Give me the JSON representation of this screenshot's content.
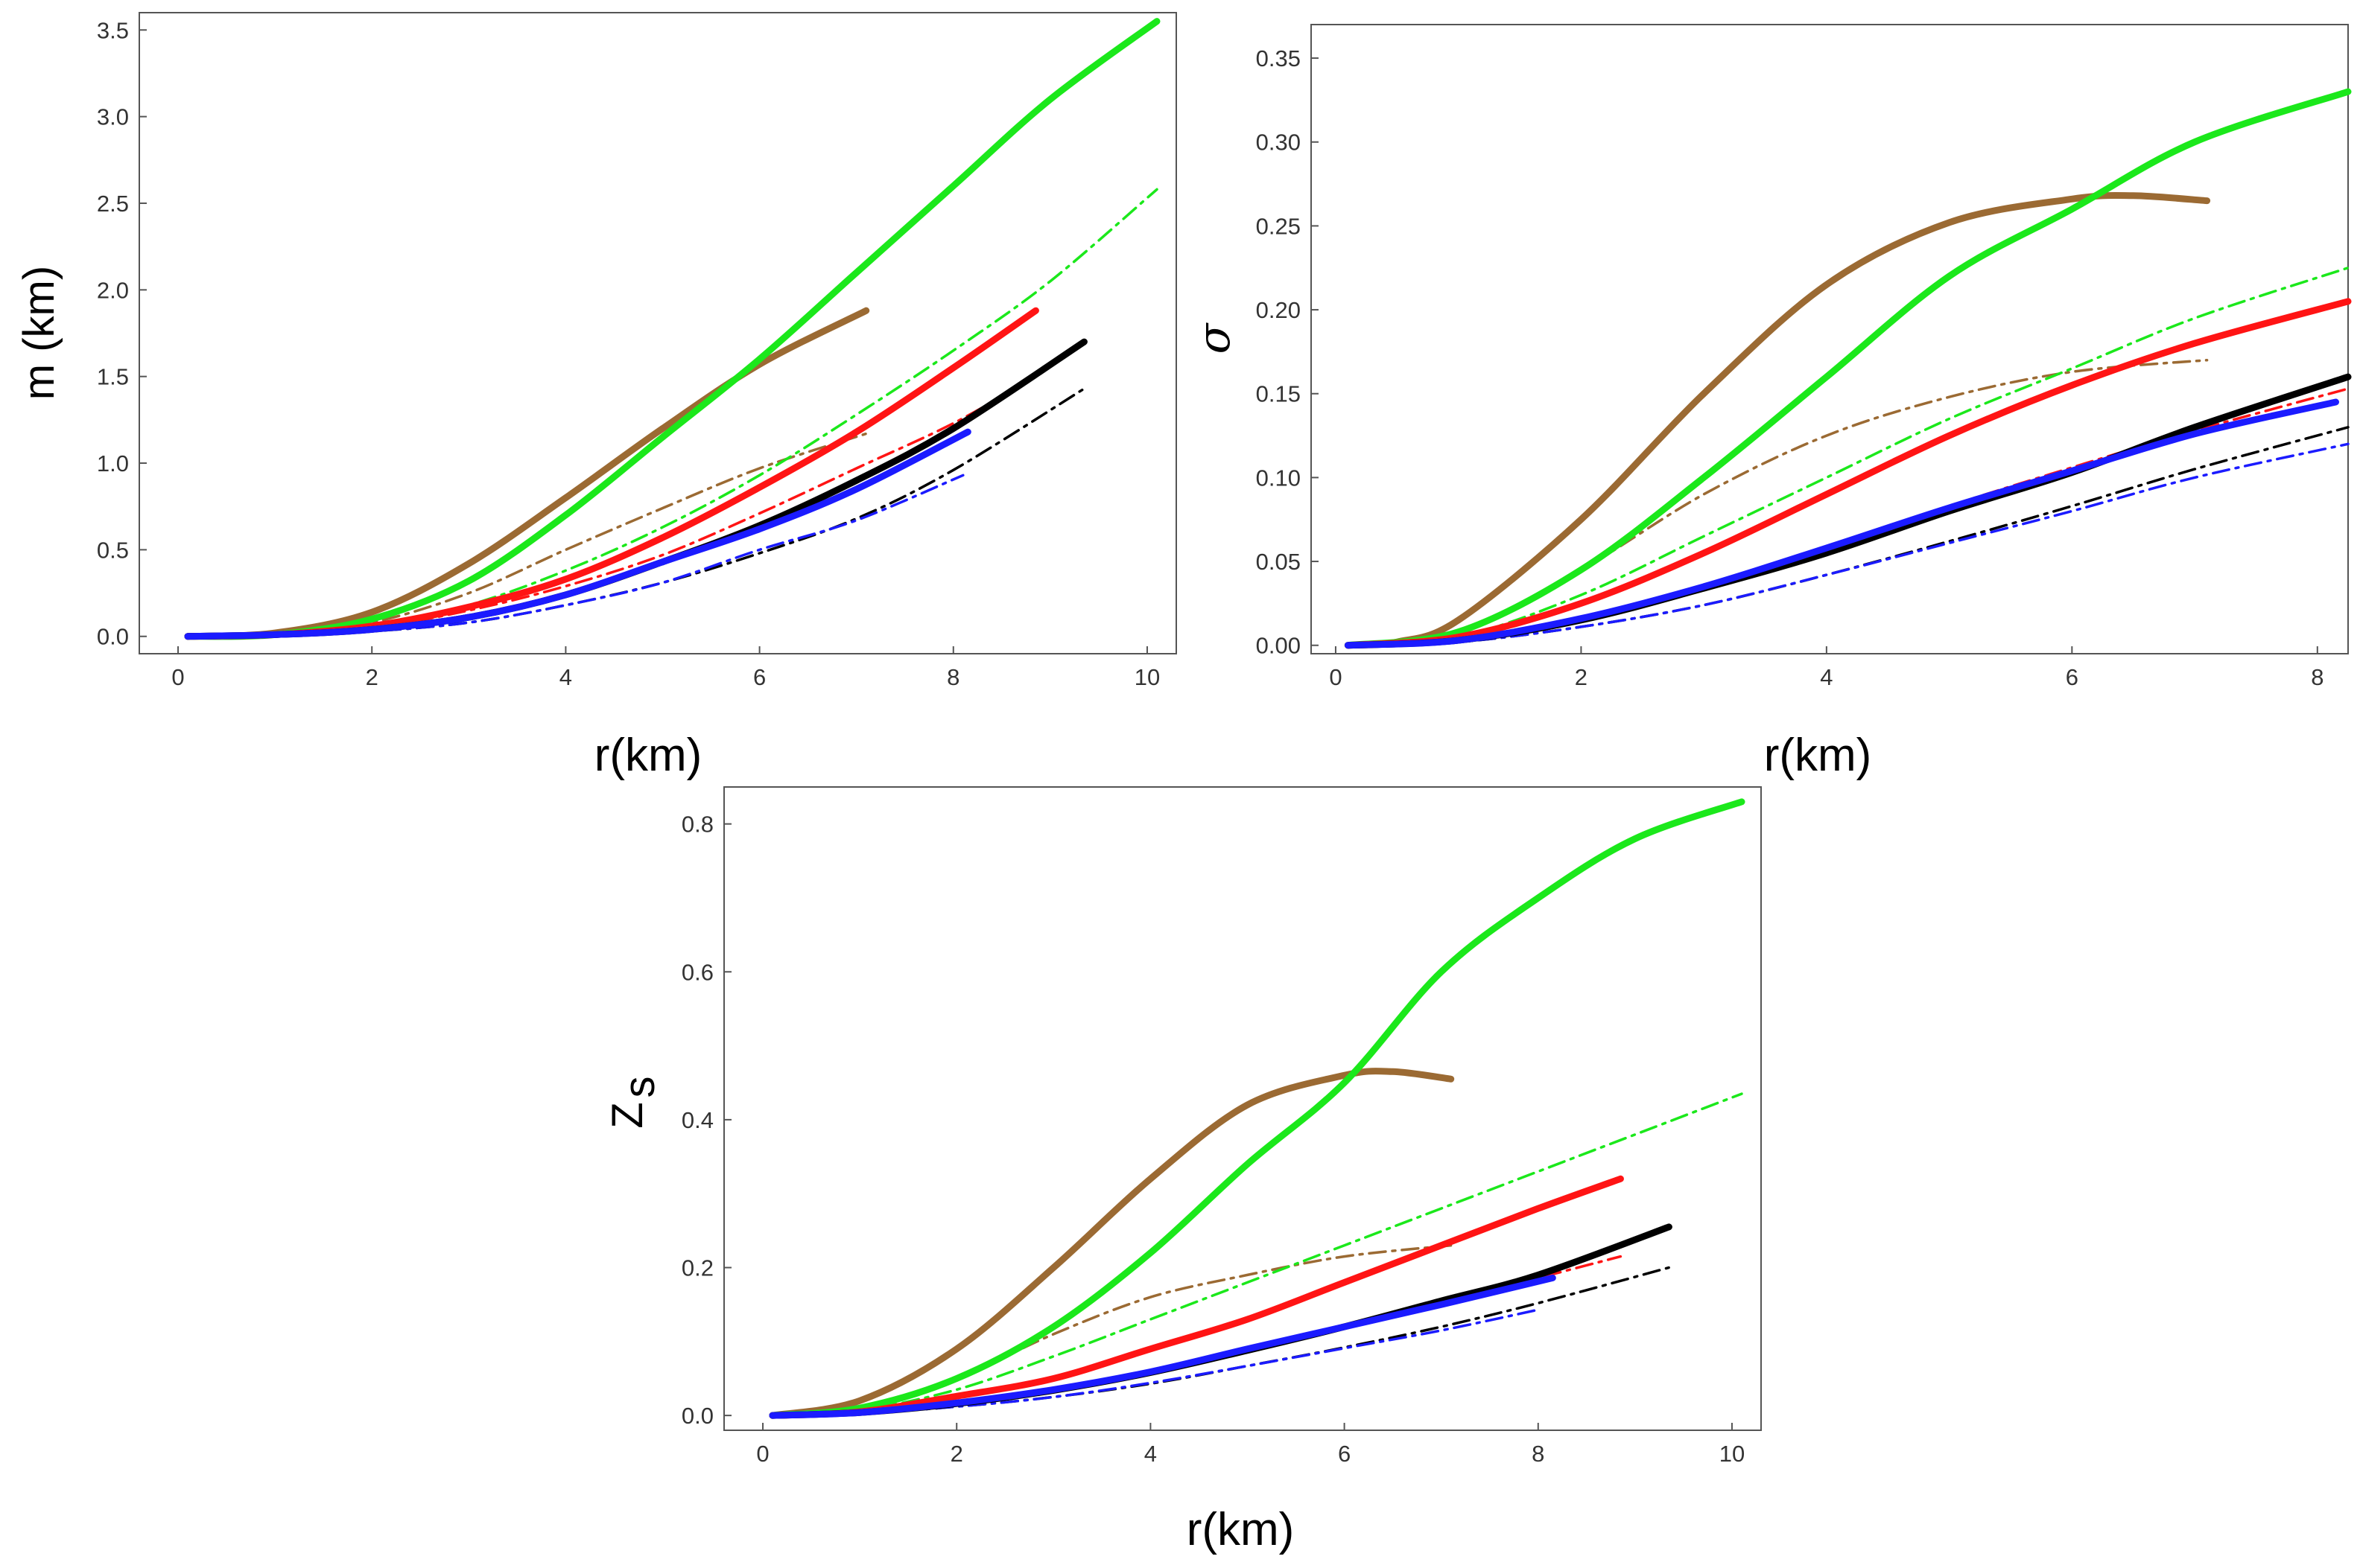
{
  "colors": {
    "brown": "#9b6a33",
    "green": "#1be81b",
    "red": "#ff1414",
    "black": "#000000",
    "blue": "#1b1bff",
    "axis": "#555555"
  },
  "chart_data": [
    {
      "id": "mass",
      "type": "line",
      "title": "",
      "xlabel": "r(km)",
      "ylabel": "m (km)",
      "xlim": [
        -0.4,
        10.3
      ],
      "ylim": [
        -0.1,
        3.6
      ],
      "xticks": [
        0,
        2,
        4,
        6,
        8,
        10
      ],
      "yticks": [
        0.0,
        0.5,
        1.0,
        1.5,
        2.0,
        2.5,
        3.0,
        3.5
      ],
      "ytick_labels": [
        "0.0",
        "0.5",
        "1.0",
        "1.5",
        "2.0",
        "2.5",
        "3.0",
        "3.5"
      ],
      "series": [
        {
          "name": "brown-solid",
          "color": "brown",
          "style": "solid",
          "x": [
            0.1,
            1,
            2,
            3,
            4,
            5,
            6,
            7.1
          ],
          "y": [
            0,
            0.02,
            0.14,
            0.42,
            0.8,
            1.2,
            1.57,
            1.88
          ]
        },
        {
          "name": "green-solid",
          "color": "green",
          "style": "solid",
          "x": [
            0.1,
            1,
            2,
            3,
            4,
            5,
            6,
            7,
            8,
            9,
            10.1
          ],
          "y": [
            0,
            0.01,
            0.1,
            0.32,
            0.7,
            1.15,
            1.6,
            2.1,
            2.6,
            3.1,
            3.55
          ]
        },
        {
          "name": "red-solid",
          "color": "red",
          "style": "solid",
          "x": [
            0.1,
            1,
            2,
            3,
            4,
            5,
            6,
            7,
            8,
            8.85
          ],
          "y": [
            0,
            0.01,
            0.06,
            0.17,
            0.33,
            0.57,
            0.86,
            1.18,
            1.55,
            1.88
          ]
        },
        {
          "name": "black-solid",
          "color": "black",
          "style": "solid",
          "x": [
            0.1,
            1,
            2,
            3,
            4,
            5,
            6,
            7,
            8,
            9.35
          ],
          "y": [
            0,
            0.01,
            0.04,
            0.11,
            0.24,
            0.43,
            0.64,
            0.9,
            1.2,
            1.7
          ]
        },
        {
          "name": "blue-solid",
          "color": "blue",
          "style": "solid",
          "x": [
            0.1,
            1,
            2,
            3,
            4,
            5,
            6,
            7,
            8.15
          ],
          "y": [
            0,
            0.01,
            0.04,
            0.11,
            0.24,
            0.43,
            0.62,
            0.85,
            1.18
          ]
        },
        {
          "name": "brown-dashdot",
          "color": "brown",
          "style": "dashdot",
          "x": [
            0.1,
            1,
            2,
            3,
            4,
            5,
            6,
            7.1
          ],
          "y": [
            0,
            0.01,
            0.08,
            0.25,
            0.5,
            0.74,
            0.97,
            1.17
          ]
        },
        {
          "name": "green-dashdot",
          "color": "green",
          "style": "dashdot",
          "x": [
            0.1,
            1,
            2,
            3,
            4,
            5,
            6,
            7,
            8,
            9,
            10.1
          ],
          "y": [
            0,
            0.01,
            0.06,
            0.18,
            0.38,
            0.63,
            0.93,
            1.28,
            1.65,
            2.05,
            2.58
          ]
        },
        {
          "name": "red-dashdot",
          "color": "red",
          "style": "dashdot",
          "x": [
            0.1,
            1,
            2,
            3,
            4,
            5,
            6,
            7,
            8,
            8.85
          ],
          "y": [
            0,
            0.01,
            0.05,
            0.15,
            0.29,
            0.47,
            0.71,
            0.97,
            1.23,
            1.5
          ]
        },
        {
          "name": "black-dashdot",
          "color": "black",
          "style": "dashdot",
          "x": [
            0.1,
            1,
            2,
            3,
            4,
            5,
            6,
            7,
            8,
            9.35
          ],
          "y": [
            0,
            0.01,
            0.03,
            0.08,
            0.18,
            0.31,
            0.48,
            0.68,
            0.96,
            1.43
          ]
        },
        {
          "name": "blue-dashdot",
          "color": "blue",
          "style": "dashdot",
          "x": [
            0.1,
            1,
            2,
            3,
            4,
            5,
            6,
            7,
            8.1
          ],
          "y": [
            0,
            0.01,
            0.03,
            0.08,
            0.18,
            0.31,
            0.5,
            0.67,
            0.93
          ]
        }
      ]
    },
    {
      "id": "compactness",
      "type": "line",
      "title": "",
      "xlabel": "r(km)",
      "ylabel": "σ",
      "xlim": [
        -0.2,
        8.25
      ],
      "ylim": [
        -0.005,
        0.37
      ],
      "xticks": [
        0,
        2,
        4,
        6,
        8
      ],
      "yticks": [
        0.0,
        0.05,
        0.1,
        0.15,
        0.2,
        0.25,
        0.3,
        0.35
      ],
      "ytick_labels": [
        "0.00",
        "0.05",
        "0.10",
        "0.15",
        "0.20",
        "0.25",
        "0.30",
        "0.35"
      ],
      "series": [
        {
          "name": "brown-solid",
          "color": "brown",
          "style": "solid",
          "x": [
            0.1,
            0.5,
            1,
            2,
            3,
            4,
            5,
            6,
            6.5,
            7.1
          ],
          "y": [
            0,
            0.002,
            0.015,
            0.075,
            0.15,
            0.215,
            0.252,
            0.266,
            0.268,
            0.265
          ]
        },
        {
          "name": "green-solid",
          "color": "green",
          "style": "solid",
          "x": [
            0.1,
            1,
            2,
            3,
            4,
            5,
            6,
            7,
            8.25
          ],
          "y": [
            0,
            0.008,
            0.045,
            0.1,
            0.16,
            0.22,
            0.26,
            0.3,
            0.33
          ]
        },
        {
          "name": "red-solid",
          "color": "red",
          "style": "solid",
          "x": [
            0.1,
            1,
            2,
            3,
            4,
            5,
            6,
            7,
            8.25
          ],
          "y": [
            0,
            0.005,
            0.025,
            0.055,
            0.09,
            0.125,
            0.155,
            0.18,
            0.205
          ]
        },
        {
          "name": "black-solid",
          "color": "black",
          "style": "solid",
          "x": [
            0.1,
            1,
            2,
            3,
            4,
            5,
            6,
            7,
            8.25
          ],
          "y": [
            0,
            0.003,
            0.015,
            0.034,
            0.055,
            0.08,
            0.103,
            0.13,
            0.16
          ]
        },
        {
          "name": "blue-solid",
          "color": "blue",
          "style": "solid",
          "x": [
            0.1,
            1,
            2,
            3,
            4,
            5,
            6,
            7,
            8.15
          ],
          "y": [
            0,
            0.003,
            0.016,
            0.035,
            0.058,
            0.082,
            0.104,
            0.126,
            0.145
          ]
        },
        {
          "name": "brown-dashdot",
          "color": "brown",
          "style": "dashdot",
          "x": [
            0.1,
            1,
            2,
            3,
            4,
            5,
            6,
            7.1
          ],
          "y": [
            0,
            0.009,
            0.045,
            0.09,
            0.125,
            0.148,
            0.163,
            0.17
          ]
        },
        {
          "name": "green-dashdot",
          "color": "green",
          "style": "dashdot",
          "x": [
            0.1,
            1,
            2,
            3,
            4,
            5,
            6,
            7,
            8.25
          ],
          "y": [
            0,
            0.005,
            0.03,
            0.065,
            0.1,
            0.135,
            0.165,
            0.195,
            0.225
          ]
        },
        {
          "name": "red-dashdot",
          "color": "red",
          "style": "dashdot",
          "x": [
            0.1,
            1,
            2,
            3,
            4,
            5,
            6,
            7,
            8.25
          ],
          "y": [
            0,
            0.004,
            0.016,
            0.035,
            0.058,
            0.083,
            0.106,
            0.128,
            0.153
          ]
        },
        {
          "name": "black-dashdot",
          "color": "black",
          "style": "dashdot",
          "x": [
            0.1,
            1,
            2,
            3,
            4,
            5,
            6,
            7,
            8.25
          ],
          "y": [
            0,
            0.002,
            0.011,
            0.024,
            0.042,
            0.062,
            0.083,
            0.105,
            0.13
          ]
        },
        {
          "name": "blue-dashdot",
          "color": "blue",
          "style": "dashdot",
          "x": [
            0.1,
            1,
            2,
            3,
            4,
            5,
            6,
            7,
            8.25
          ],
          "y": [
            0,
            0.002,
            0.011,
            0.024,
            0.042,
            0.061,
            0.08,
            0.1,
            0.12
          ]
        }
      ]
    },
    {
      "id": "redshift",
      "type": "line",
      "title": "",
      "xlabel": "r(km)",
      "ylabel": "Z",
      "ylabel_sub": "s",
      "xlim": [
        -0.4,
        10.3
      ],
      "ylim": [
        -0.02,
        0.85
      ],
      "xticks": [
        0,
        2,
        4,
        6,
        8,
        10
      ],
      "yticks": [
        0.0,
        0.2,
        0.4,
        0.6,
        0.8
      ],
      "ytick_labels": [
        "0.0",
        "0.2",
        "0.4",
        "0.6",
        "0.8"
      ],
      "series": [
        {
          "name": "brown-solid",
          "color": "brown",
          "style": "solid",
          "x": [
            0.1,
            1,
            2,
            3,
            4,
            5,
            6,
            6.5,
            7.1
          ],
          "y": [
            0,
            0.02,
            0.09,
            0.2,
            0.32,
            0.42,
            0.46,
            0.465,
            0.455
          ]
        },
        {
          "name": "green-solid",
          "color": "green",
          "style": "solid",
          "x": [
            0.1,
            1,
            2,
            3,
            4,
            5,
            6,
            7,
            8,
            9,
            10.1
          ],
          "y": [
            0,
            0.01,
            0.05,
            0.12,
            0.22,
            0.34,
            0.45,
            0.6,
            0.7,
            0.78,
            0.83
          ]
        },
        {
          "name": "red-solid",
          "color": "red",
          "style": "solid",
          "x": [
            0.1,
            1,
            2,
            3,
            4,
            5,
            6,
            7,
            8,
            8.85
          ],
          "y": [
            0,
            0.005,
            0.026,
            0.05,
            0.09,
            0.13,
            0.18,
            0.23,
            0.28,
            0.32
          ]
        },
        {
          "name": "black-solid",
          "color": "black",
          "style": "solid",
          "x": [
            0.1,
            1,
            2,
            3,
            4,
            5,
            6,
            7,
            8,
            9.35
          ],
          "y": [
            0,
            0.004,
            0.016,
            0.034,
            0.058,
            0.088,
            0.12,
            0.155,
            0.19,
            0.255
          ]
        },
        {
          "name": "blue-solid",
          "color": "blue",
          "style": "solid",
          "x": [
            0.1,
            1,
            2,
            3,
            4,
            5,
            6,
            7,
            8.15
          ],
          "y": [
            0,
            0.004,
            0.017,
            0.035,
            0.059,
            0.09,
            0.12,
            0.15,
            0.186
          ]
        },
        {
          "name": "brown-dashdot",
          "color": "brown",
          "style": "dashdot",
          "x": [
            0.1,
            1,
            2,
            3,
            4,
            5,
            6,
            7.1
          ],
          "y": [
            0,
            0.01,
            0.05,
            0.11,
            0.16,
            0.19,
            0.215,
            0.23
          ]
        },
        {
          "name": "green-dashdot",
          "color": "green",
          "style": "dashdot",
          "x": [
            0.1,
            1,
            2,
            3,
            4,
            5,
            6,
            7,
            8,
            9,
            10.1
          ],
          "y": [
            0,
            0.007,
            0.035,
            0.08,
            0.13,
            0.18,
            0.23,
            0.28,
            0.33,
            0.38,
            0.435
          ]
        },
        {
          "name": "red-dashdot",
          "color": "red",
          "style": "dashdot",
          "x": [
            0.1,
            1,
            2,
            3,
            4,
            5,
            6,
            7,
            8,
            8.85
          ],
          "y": [
            0,
            0.004,
            0.017,
            0.035,
            0.058,
            0.088,
            0.12,
            0.152,
            0.186,
            0.215
          ]
        },
        {
          "name": "black-dashdot",
          "color": "black",
          "style": "dashdot",
          "x": [
            0.1,
            1,
            2,
            3,
            4,
            5,
            6,
            7,
            8,
            9.35
          ],
          "y": [
            0,
            0.003,
            0.012,
            0.025,
            0.043,
            0.067,
            0.092,
            0.12,
            0.152,
            0.2
          ]
        },
        {
          "name": "blue-dashdot",
          "color": "blue",
          "style": "dashdot",
          "x": [
            0.1,
            1,
            2,
            3,
            4,
            5,
            6,
            7,
            8
          ],
          "y": [
            0,
            0.003,
            0.012,
            0.025,
            0.044,
            0.067,
            0.091,
            0.115,
            0.143
          ]
        }
      ]
    }
  ]
}
